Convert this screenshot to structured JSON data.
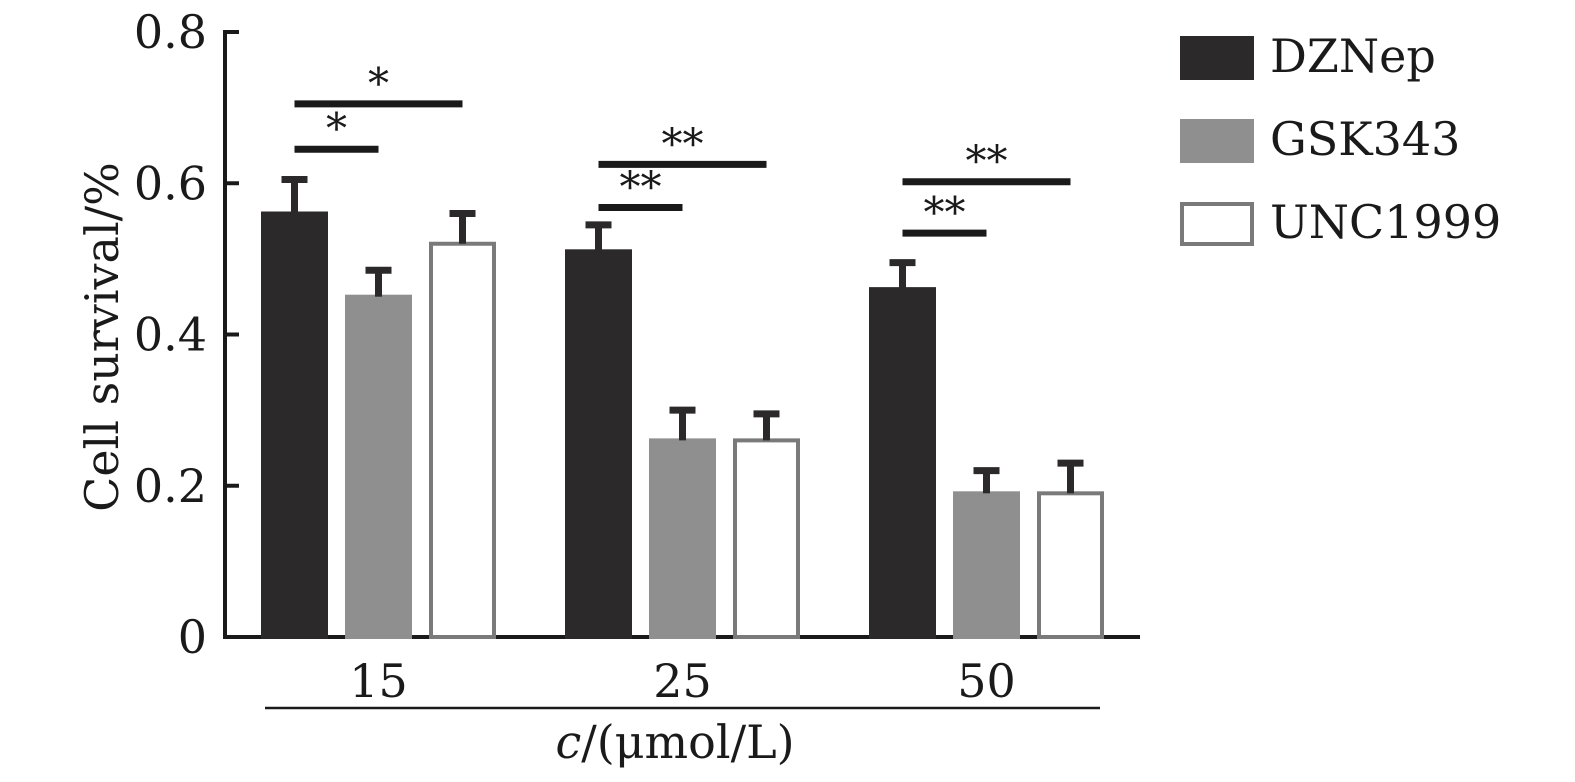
{
  "chart_data": {
    "type": "bar",
    "categories": [
      "15",
      "25",
      "50"
    ],
    "series": [
      {
        "name": "DZNep",
        "values": [
          0.56,
          0.51,
          0.46
        ],
        "errors": [
          0.045,
          0.035,
          0.035
        ],
        "color": "#2b2929",
        "stroke": "#2b2929"
      },
      {
        "name": "GSK343",
        "values": [
          0.45,
          0.26,
          0.19
        ],
        "errors": [
          0.035,
          0.04,
          0.03
        ],
        "color": "#8f8f8f",
        "stroke": "#8f8f8f"
      },
      {
        "name": "UNC1999",
        "values": [
          0.52,
          0.26,
          0.19
        ],
        "errors": [
          0.04,
          0.035,
          0.04
        ],
        "color": "#ffffff",
        "stroke": "#7a7a7a"
      }
    ],
    "ylabel": "Cell survival/%",
    "xlabel_italic": "c",
    "xlabel_rest": "/(μmol/L)",
    "ylim": [
      0,
      0.8
    ],
    "yticks": [
      "0",
      "0.2",
      "0.4",
      "0.6",
      "0.8"
    ],
    "ytick_values": [
      0,
      0.2,
      0.4,
      0.6,
      0.8
    ],
    "significance": [
      {
        "category": 0,
        "from_series": 0,
        "to_series": 1,
        "label": "*",
        "level": 0.645
      },
      {
        "category": 0,
        "from_series": 0,
        "to_series": 2,
        "label": "*",
        "level": 0.705
      },
      {
        "category": 1,
        "from_series": 0,
        "to_series": 1,
        "label": "**",
        "level": 0.568
      },
      {
        "category": 1,
        "from_series": 0,
        "to_series": 2,
        "label": "**",
        "level": 0.625
      },
      {
        "category": 2,
        "from_series": 0,
        "to_series": 1,
        "label": "**",
        "level": 0.534
      },
      {
        "category": 2,
        "from_series": 0,
        "to_series": 2,
        "label": "**",
        "level": 0.602
      }
    ],
    "legend_position": "top-right",
    "grid": false
  }
}
